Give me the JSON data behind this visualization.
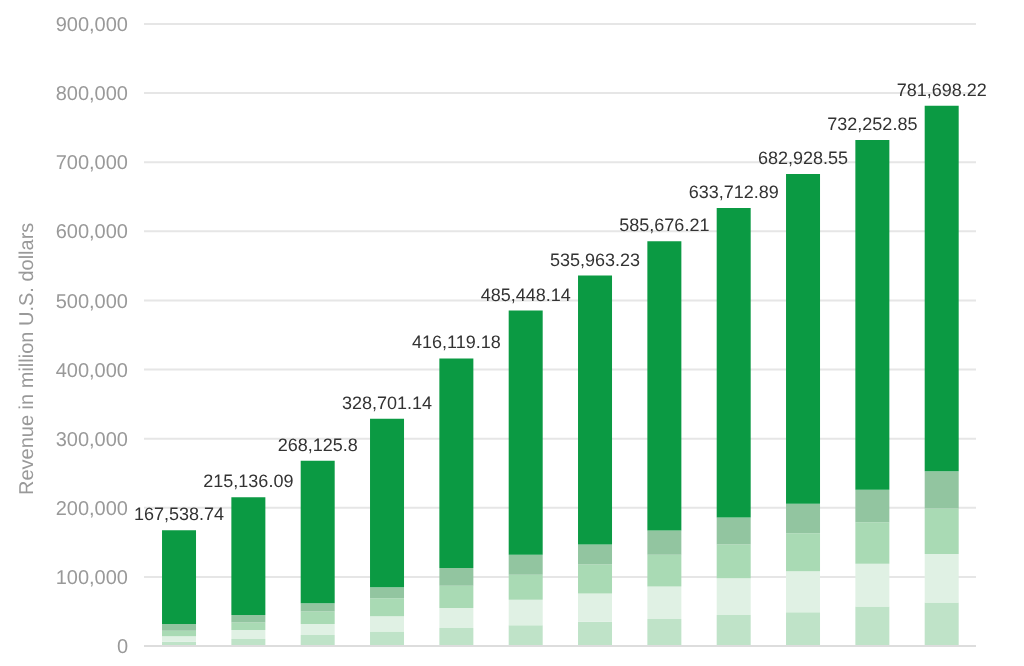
{
  "chart_data": {
    "type": "bar",
    "stacked": true,
    "ylabel": "Revenue in million U.S. dollars",
    "categories": [
      null,
      null,
      null,
      null,
      null,
      null,
      null,
      null,
      null,
      null,
      null,
      null
    ],
    "series": [
      {
        "color": "#bfe3c8",
        "values": [
          6000,
          10000,
          16000,
          21000,
          26000,
          30000,
          35000,
          39000,
          45000,
          49000,
          57000,
          63000
        ]
      },
      {
        "color": "#e0f1e4",
        "values": [
          8000,
          13000,
          16000,
          22000,
          29000,
          37000,
          41000,
          47000,
          53000,
          59000,
          62000,
          70000
        ]
      },
      {
        "color": "#a9dab4",
        "values": [
          8000,
          11000,
          18000,
          26000,
          32000,
          36000,
          42000,
          46000,
          49000,
          55000,
          60000,
          66000
        ]
      },
      {
        "color": "#92c5a0",
        "values": [
          10000,
          11000,
          12000,
          16000,
          26000,
          29000,
          29000,
          35000,
          39000,
          43000,
          47000,
          54000
        ]
      },
      {
        "color": "#0b9a43",
        "values": [
          135538.74,
          170136.09,
          206125.8,
          243701.14,
          303119.18,
          353448.14,
          388963.23,
          418676.21,
          447712.89,
          476928.55,
          506252.85,
          528698.22
        ]
      }
    ],
    "totals": [
      "167,538.74",
      "215,136.09",
      "268,125.8",
      "328,701.14",
      "416,119.18",
      "485,448.14",
      "535,963.23",
      "585,676.21",
      "633,712.89",
      "682,928.55",
      "732,252.85",
      "781,698.22"
    ],
    "ylim": [
      0,
      900000
    ],
    "yticks": [
      0,
      {
        "value": 100000,
        "label": "100,000"
      },
      {
        "value": 200000,
        "label": "200,000"
      },
      {
        "value": 300000,
        "label": "300,000"
      },
      {
        "value": 400000,
        "label": "400,000"
      },
      {
        "value": 500000,
        "label": "500,000"
      },
      {
        "value": 600000,
        "label": "600,000"
      },
      {
        "value": 700000,
        "label": "700,000"
      },
      {
        "value": 800000,
        "label": "800,000"
      },
      {
        "value": 900000,
        "label": "900,000"
      }
    ],
    "grid": "y",
    "legend": false,
    "tick_labels": "y"
  }
}
